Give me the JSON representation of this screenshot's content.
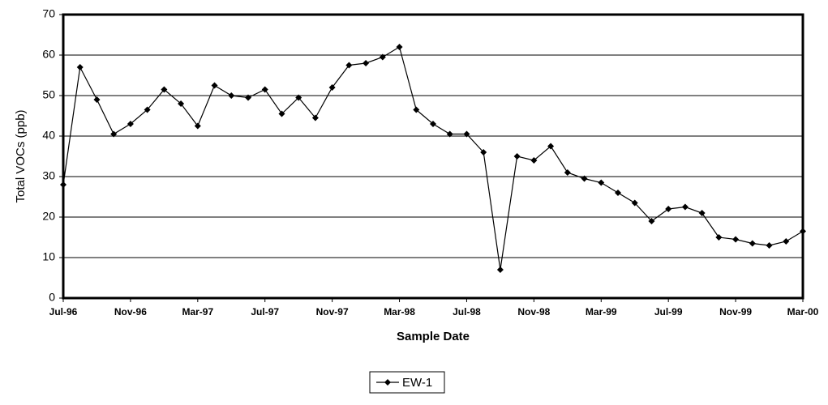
{
  "chart_data": {
    "type": "line",
    "x_label": "Sample Date",
    "y_label": "Total VOCs (ppb)",
    "x": [
      "1996-07",
      "1996-08",
      "1996-09",
      "1996-10",
      "1996-11",
      "1996-12",
      "1997-01",
      "1997-02",
      "1997-03",
      "1997-04",
      "1997-05",
      "1997-06",
      "1997-07",
      "1997-08",
      "1997-09",
      "1997-10",
      "1997-11",
      "1997-12",
      "1998-01",
      "1998-02",
      "1998-03",
      "1998-04",
      "1998-05",
      "1998-06",
      "1998-07",
      "1998-08",
      "1998-09",
      "1998-10",
      "1998-11",
      "1998-12",
      "1999-01",
      "1999-02",
      "1999-03",
      "1999-04",
      "1999-05",
      "1999-06",
      "1999-07",
      "1999-08",
      "1999-09",
      "1999-10",
      "1999-11",
      "1999-12",
      "2000-01",
      "2000-02",
      "2000-03"
    ],
    "series": [
      {
        "name": "EW-1",
        "color": "#000000",
        "values": [
          28,
          57,
          49,
          40.5,
          43,
          46.5,
          51.5,
          48,
          42.5,
          52.5,
          50,
          49.5,
          51.5,
          45.5,
          49.5,
          44.5,
          52,
          57.5,
          58,
          59.5,
          62,
          46.5,
          43,
          40.5,
          40.5,
          36,
          7,
          35,
          34,
          37.5,
          31,
          29.5,
          28.5,
          26,
          23.5,
          19,
          22,
          22.5,
          21,
          15,
          14.5,
          13.5,
          13,
          14,
          16.5
        ]
      }
    ],
    "xlim": [
      "1996-07",
      "2000-03"
    ],
    "xticks": [
      {
        "value": "1996-07",
        "label": "Jul-96"
      },
      {
        "value": "1996-11",
        "label": "Nov-96"
      },
      {
        "value": "1997-03",
        "label": "Mar-97"
      },
      {
        "value": "1997-07",
        "label": "Jul-97"
      },
      {
        "value": "1997-11",
        "label": "Nov-97"
      },
      {
        "value": "1998-03",
        "label": "Mar-98"
      },
      {
        "value": "1998-07",
        "label": "Jul-98"
      },
      {
        "value": "1998-11",
        "label": "Nov-98"
      },
      {
        "value": "1999-03",
        "label": "Mar-99"
      },
      {
        "value": "1999-07",
        "label": "Jul-99"
      },
      {
        "value": "1999-11",
        "label": "Nov-99"
      },
      {
        "value": "2000-03",
        "label": "Mar-00"
      }
    ],
    "ylim": [
      0,
      70
    ],
    "yticks": [
      0,
      10,
      20,
      30,
      40,
      50,
      60,
      70
    ],
    "grid": true,
    "legend": "bottom"
  }
}
